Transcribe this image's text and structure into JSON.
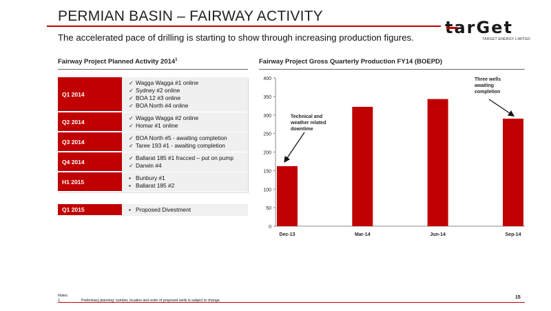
{
  "header": {
    "title": "PERMIAN BASIN – FAIRWAY ACTIVITY",
    "subtitle": "The accelerated pace of drilling is starting to show through increasing production figures."
  },
  "logo": {
    "word": "tarGet",
    "tagline": "TARGET ENERGY LIMITED",
    "accent_color": "#c00000"
  },
  "activity": {
    "title": "Fairway Project Planned Activity 2014",
    "title_sup": "1",
    "rows": [
      {
        "label": "Q1 2014",
        "marker": "✓",
        "items": [
          "Wagga Wagga #1 online",
          "Sydney #2 online",
          "BOA 12 #3 online",
          "BOA North #4 online"
        ]
      },
      {
        "label": "Q2 2014",
        "marker": "✓",
        "items": [
          "Wagga Wagga #2 online",
          "Homar #1 online"
        ]
      },
      {
        "label": "Q3 2014",
        "marker": "✓",
        "items": [
          "BOA North #5 - awaiting completion",
          "Taree 193 #1 - awaiting completion"
        ]
      },
      {
        "label": "Q4 2014",
        "marker": "✓",
        "items": [
          "Ballarat 185 #1 fracced – put on pump",
          "Darwin #4"
        ]
      },
      {
        "label": "H1 2015",
        "marker": "▪",
        "items": [
          "Bunbury #1",
          "Ballarat 185 #2"
        ]
      }
    ],
    "extra_row": {
      "label": "Q1 2015",
      "marker": "▪",
      "items": [
        "Proposed Divestment"
      ]
    }
  },
  "chart_title": "Fairway Project Gross Quarterly Production FY14 (BOEPD)",
  "chart_data": {
    "type": "bar",
    "title": "Fairway Project Gross Quarterly Production FY14 (BOEPD)",
    "categories": [
      "Dec-13",
      "Mar-14",
      "Jun-14",
      "Sep-14"
    ],
    "values": [
      162,
      322,
      343,
      290
    ],
    "ylim": [
      0,
      400
    ],
    "yticks": [
      "0",
      "50",
      "100",
      "150",
      "200",
      "250",
      "300",
      "350",
      "400"
    ],
    "grid": false,
    "bar_color": "#c00000",
    "annotations": [
      {
        "text": "Technical and weather related downtime",
        "category_index": 0
      },
      {
        "text": "Three wells awaiting completion",
        "category_index": 3
      }
    ]
  },
  "notes": {
    "heading": "Notes:",
    "items": [
      {
        "num": "1.",
        "text": "Preliminary planning: number, location and order of proposed wells is subject to change."
      }
    ]
  },
  "page_number": "15"
}
